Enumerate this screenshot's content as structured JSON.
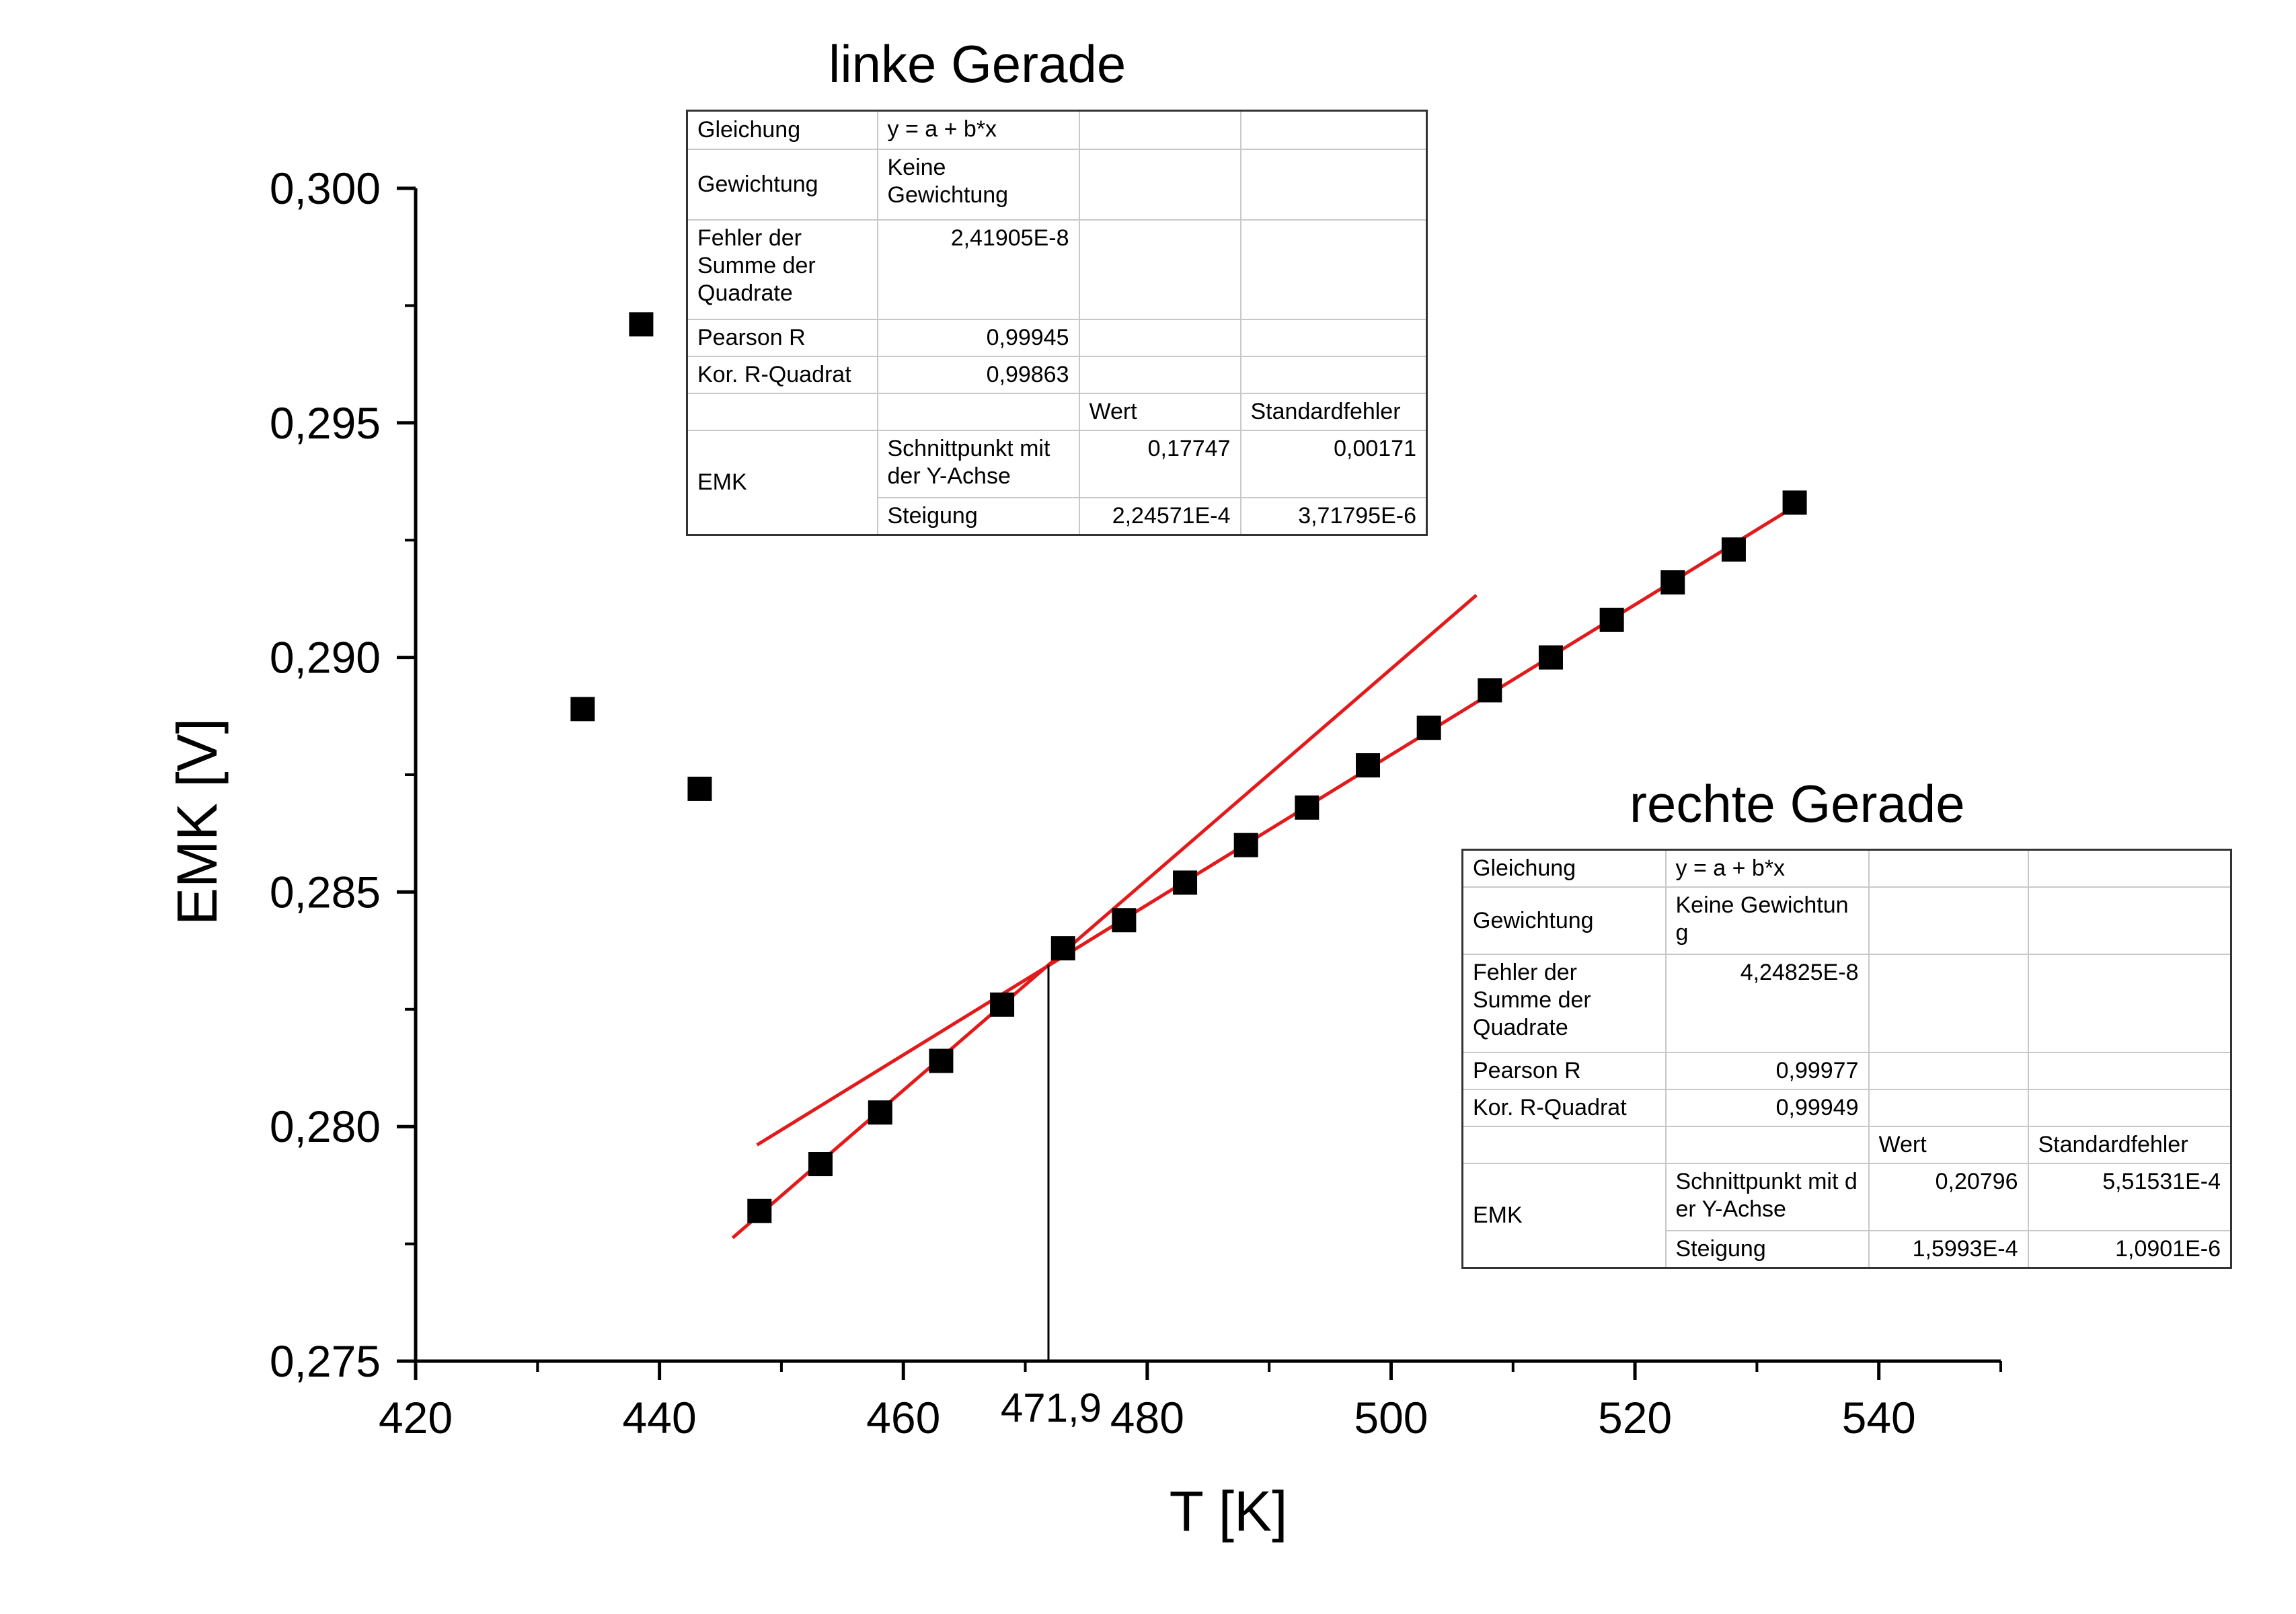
{
  "chart_data": {
    "type": "scatter",
    "xlabel": "T [K]",
    "ylabel": "EMK [V]",
    "xlim": [
      420,
      550
    ],
    "ylim": [
      0.275,
      0.3
    ],
    "xticks": [
      420,
      440,
      460,
      480,
      500,
      520,
      540
    ],
    "xtick_labels": [
      "420",
      "440",
      "460",
      "480",
      "500",
      "520",
      "540"
    ],
    "yticks": [
      0.275,
      0.28,
      0.285,
      0.29,
      0.295,
      0.3
    ],
    "ytick_labels": [
      "0,275",
      "0,280",
      "0,285",
      "0,290",
      "0,295",
      "0,300"
    ],
    "points": [
      {
        "x": 433.7,
        "y": 0.2889
      },
      {
        "x": 438.5,
        "y": 0.2971
      },
      {
        "x": 443.3,
        "y": 0.2872
      },
      {
        "x": 448.2,
        "y": 0.2782
      },
      {
        "x": 453.2,
        "y": 0.2792
      },
      {
        "x": 458.1,
        "y": 0.2803
      },
      {
        "x": 463.1,
        "y": 0.2814
      },
      {
        "x": 468.1,
        "y": 0.2826
      },
      {
        "x": 473.1,
        "y": 0.2838
      },
      {
        "x": 478.1,
        "y": 0.2844
      },
      {
        "x": 483.1,
        "y": 0.2852
      },
      {
        "x": 488.1,
        "y": 0.286
      },
      {
        "x": 493.1,
        "y": 0.2868
      },
      {
        "x": 498.1,
        "y": 0.2877
      },
      {
        "x": 503.1,
        "y": 0.2885
      },
      {
        "x": 508.1,
        "y": 0.2893
      },
      {
        "x": 513.1,
        "y": 0.29
      },
      {
        "x": 518.1,
        "y": 0.2908
      },
      {
        "x": 523.1,
        "y": 0.2916
      },
      {
        "x": 528.1,
        "y": 0.2923
      },
      {
        "x": 533.1,
        "y": 0.2933
      }
    ],
    "fit_lines": [
      {
        "name": "linke Gerade",
        "intercept": 0.17747,
        "slope": 0.000224571,
        "x_range": [
          446,
          507
        ]
      },
      {
        "name": "rechte Gerade",
        "intercept": 0.20796,
        "slope": 0.00015993,
        "x_range": [
          448,
          533
        ]
      }
    ],
    "intersection": {
      "x": 471.9,
      "label": "471,9"
    },
    "series_color": "#000000",
    "fit_color": "#e31a1c"
  },
  "fit_tables": {
    "left": {
      "title": "linke Gerade",
      "rows": {
        "gleichung_label": "Gleichung",
        "gleichung_value": "y = a + b*x",
        "gewichtung_label": "Gewichtung",
        "gewichtung_value": "Keine Gewichtung",
        "fehler_label": "Fehler der\nSumme der\nQuadrate",
        "fehler_value": "2,41905E-8",
        "pearson_label": "Pearson R",
        "pearson_value": "0,99945",
        "rquadrat_label": "Kor. R-Quadrat",
        "rquadrat_value": "0,99863",
        "wert_header": "Wert",
        "stdfehler_header": "Standardfehler",
        "group_label": "EMK",
        "schnittpunkt_label": "Schnittpunkt mit\n der Y-Achse",
        "schnittpunkt_wert": "0,17747",
        "schnittpunkt_fehler": "0,00171",
        "steigung_label": "Steigung",
        "steigung_wert": "2,24571E-4",
        "steigung_fehler": "3,71795E-6"
      }
    },
    "right": {
      "title": "rechte Gerade",
      "rows": {
        "gleichung_label": "Gleichung",
        "gleichung_value": "y = a + b*x",
        "gewichtung_label": "Gewichtung",
        "gewichtung_value": "Keine Gewichtun\ng",
        "fehler_label": "Fehler der\nSumme der\nQuadrate",
        "fehler_value": "4,24825E-8",
        "pearson_label": "Pearson R",
        "pearson_value": "0,99977",
        "rquadrat_label": "Kor. R-Quadrat",
        "rquadrat_value": "0,99949",
        "wert_header": "Wert",
        "stdfehler_header": "Standardfehler",
        "group_label": "EMK",
        "schnittpunkt_label": "Schnittpunkt mit d\ner Y-Achse",
        "schnittpunkt_wert": "0,20796",
        "schnittpunkt_fehler": "5,51531E-4",
        "steigung_label": "Steigung",
        "steigung_wert": "1,5993E-4",
        "steigung_fehler": "1,0901E-6"
      }
    }
  }
}
